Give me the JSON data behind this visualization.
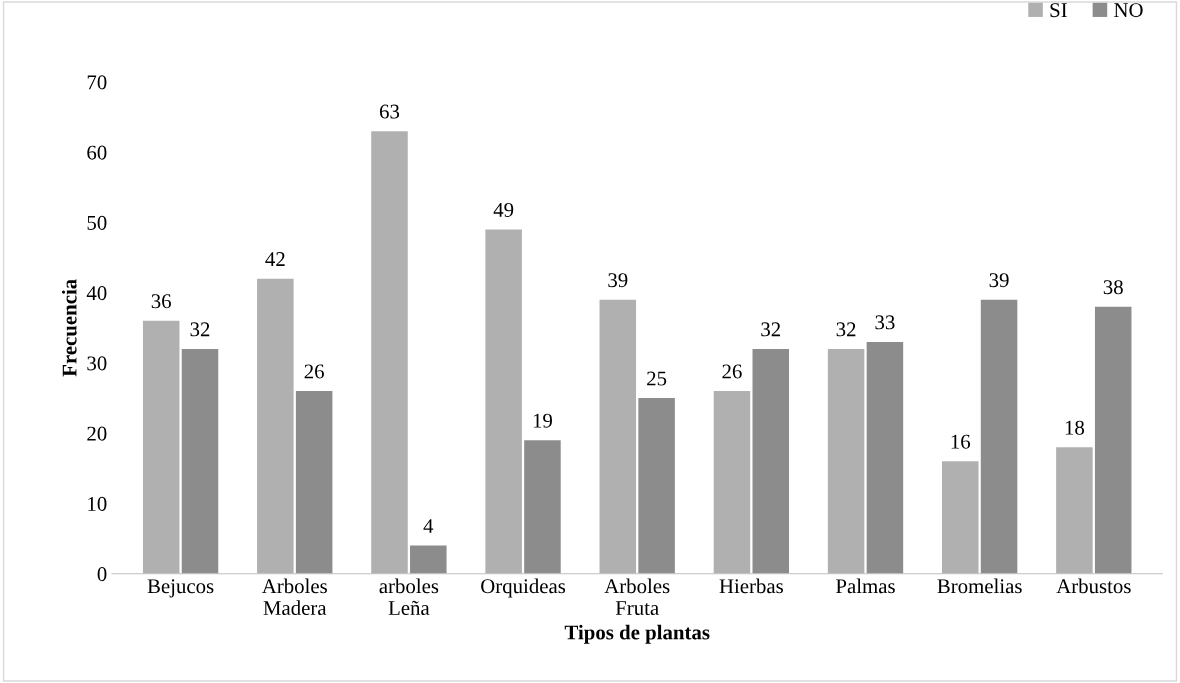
{
  "chart_data": {
    "type": "bar",
    "xlabel": "Tipos de plantas",
    "ylabel": "Frecuencia",
    "categories": [
      "Bejucos",
      "Arboles\nMadera",
      "arboles\nLeña",
      "Orquideas",
      "Arboles\nFruta",
      "Hierbas",
      "Palmas",
      "Bromelias",
      "Arbustos"
    ],
    "series": [
      {
        "name": "SI",
        "color": "#b0b0b0",
        "values": [
          36,
          42,
          63,
          49,
          39,
          26,
          32,
          16,
          18
        ]
      },
      {
        "name": "NO",
        "color": "#8c8c8c",
        "values": [
          32,
          26,
          4,
          19,
          25,
          32,
          33,
          39,
          38
        ]
      }
    ],
    "ylim": [
      0,
      70
    ],
    "yticks": [
      0,
      10,
      20,
      30,
      40,
      50,
      60,
      70
    ],
    "grid": false,
    "legend": "top right",
    "data_labels": true
  }
}
